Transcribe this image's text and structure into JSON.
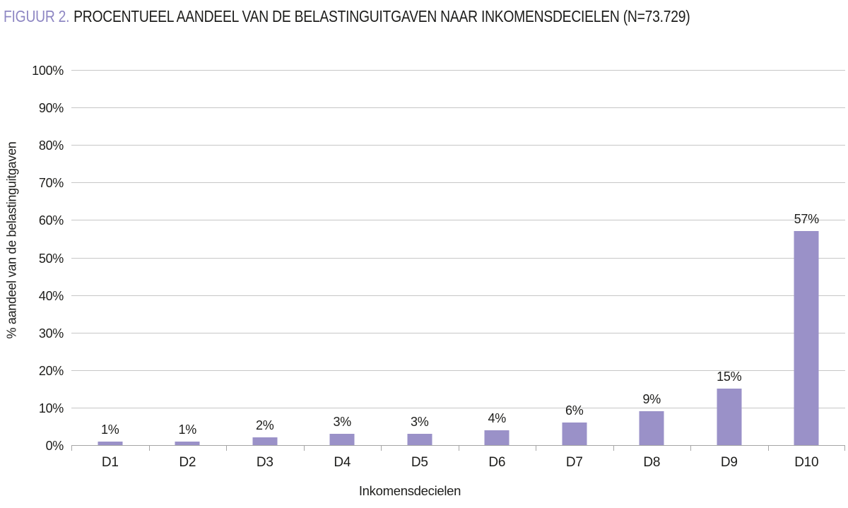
{
  "figure": {
    "title_prefix": "FIGUUR 2.",
    "title_main": "PROCENTUEEL AANDEEL VAN DE BELASTINGUITGAVEN NAAR INKOMENSDECIELEN (N=73.729)"
  },
  "chart_data": {
    "type": "bar",
    "title": "FIGUUR 2. PROCENTUEEL AANDEEL VAN DE BELASTINGUITGAVEN NAAR INKOMENSDECIELEN (N=73.729)",
    "n": "73.729",
    "categories": [
      "D1",
      "D2",
      "D3",
      "D4",
      "D5",
      "D6",
      "D7",
      "D8",
      "D9",
      "D10"
    ],
    "values": [
      1,
      1,
      2,
      3,
      3,
      4,
      6,
      9,
      15,
      57
    ],
    "value_labels": [
      "1%",
      "1%",
      "2%",
      "3%",
      "3%",
      "4%",
      "6%",
      "9%",
      "15%",
      "57%"
    ],
    "xlabel": "Inkomensdecielen",
    "ylabel": "% aandeel van de belastinguitgaven",
    "ylim": [
      0,
      100
    ],
    "ytick_step": 10,
    "ytick_labels": [
      "0%",
      "10%",
      "20%",
      "30%",
      "40%",
      "50%",
      "60%",
      "70%",
      "80%",
      "90%",
      "100%"
    ],
    "grid": true,
    "legend": "none",
    "colors": {
      "bar": "#9a91c8",
      "title_accent": "#8e87c3",
      "text": "#1d1d1b",
      "gridline": "#c7c7c7",
      "axis": "#a6a6a6",
      "background": "#ffffff"
    }
  }
}
